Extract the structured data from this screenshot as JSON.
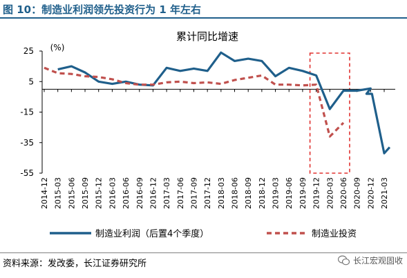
{
  "figure_title": "图 10：制造业利润领先投资行为 1 年左右",
  "source_note": "资料来源：发改委，长江证券研究所",
  "watermark": "长江宏观固收",
  "colors": {
    "title": "#1f5f8b",
    "profit_line": "#1f5f8b",
    "investment_line": "#c0504d",
    "highlight_box": "#e0312f",
    "axis": "#000000"
  },
  "chart_data": {
    "type": "line",
    "title": "累计同比增速",
    "ylabel": "(%)",
    "xlabel": "",
    "ylim": [
      -55,
      25
    ],
    "yticks": [
      25,
      5,
      -15,
      -35,
      -55
    ],
    "xticks": [
      "2014-12",
      "2015-03",
      "2015-06",
      "2015-09",
      "2015-12",
      "2016-03",
      "2016-06",
      "2016-09",
      "2016-12",
      "2017-03",
      "2017-06",
      "2017-09",
      "2017-12",
      "2018-03",
      "2018-06",
      "2018-09",
      "2018-12",
      "2019-03",
      "2019-06",
      "2019-09",
      "2019-12",
      "2020-03",
      "2020-06",
      "2020-09",
      "2020-12",
      "2021-03"
    ],
    "x": [
      "2014-12",
      "2015-03",
      "2015-06",
      "2015-09",
      "2015-12",
      "2016-03",
      "2016-06",
      "2016-09",
      "2016-12",
      "2017-03",
      "2017-06",
      "2017-09",
      "2017-12",
      "2018-03",
      "2018-06",
      "2018-09",
      "2018-12",
      "2019-03",
      "2019-06",
      "2019-09",
      "2019-12",
      "2020-03",
      "2020-06",
      "2020-09",
      "2020-12",
      "2021-03"
    ],
    "legend_position": "bottom",
    "grid": false,
    "highlight_range": [
      "2019-12",
      "2020-06"
    ],
    "series": [
      {
        "name": "制造业利润（后置4个季度）",
        "style": "solid",
        "values": [
          null,
          13,
          15,
          11,
          5,
          3.5,
          5,
          3,
          2.5,
          14,
          12,
          13.5,
          12,
          24,
          18.5,
          20,
          18.5,
          8.5,
          14,
          12,
          9,
          -13,
          -1,
          -1,
          0.5,
          -3,
          -3,
          -42,
          -38
        ],
        "x": [
          "2014-12",
          "2015-03",
          "2015-06",
          "2015-09",
          "2015-12",
          "2016-03",
          "2016-06",
          "2016-09",
          "2016-12",
          "2017-03",
          "2017-06",
          "2017-09",
          "2017-12",
          "2018-03",
          "2018-06",
          "2018-09",
          "2018-12",
          "2019-03",
          "2019-06",
          "2019-09",
          "2019-12",
          "2020-03",
          "2020-06",
          "2020-09",
          "2020-12",
          "2020-12b",
          "2021-01",
          "2021-03",
          "2021-04"
        ]
      },
      {
        "name": "制造业投资",
        "style": "dashed",
        "values": [
          14,
          10.5,
          10,
          8.5,
          8,
          6.5,
          4,
          3,
          3,
          4.5,
          5,
          4,
          4.5,
          3.5,
          6,
          7.5,
          9,
          3,
          3,
          2.5,
          3,
          -31,
          -22
        ],
        "x": [
          "2014-12",
          "2015-03",
          "2015-06",
          "2015-09",
          "2015-12",
          "2016-03",
          "2016-06",
          "2016-09",
          "2016-12",
          "2017-03",
          "2017-06",
          "2017-09",
          "2017-12",
          "2018-03",
          "2018-06",
          "2018-09",
          "2018-12",
          "2019-03",
          "2019-06",
          "2019-09",
          "2019-12",
          "2020-03",
          "2020-06"
        ]
      }
    ]
  }
}
